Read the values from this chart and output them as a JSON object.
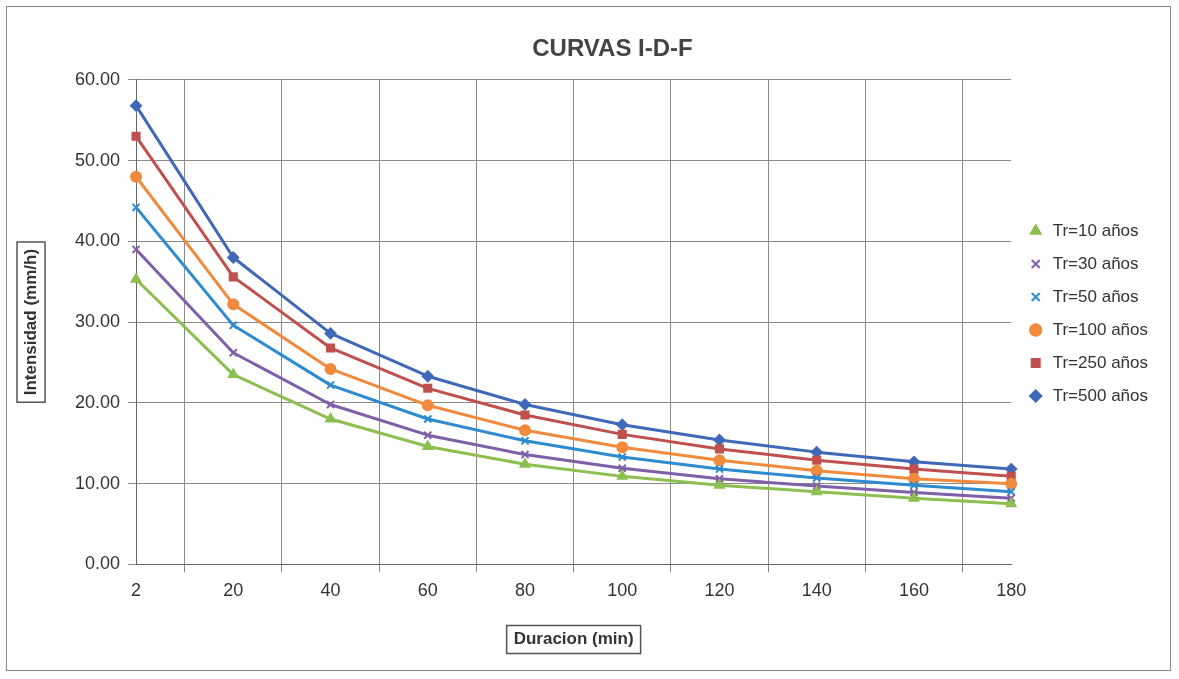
{
  "chart_data": {
    "type": "line",
    "title": "CURVAS I-D-F",
    "xlabel": "Duracion (min)",
    "ylabel": "Intensidad (mm/h)",
    "categories": [
      "2",
      "20",
      "40",
      "60",
      "80",
      "100",
      "120",
      "140",
      "160",
      "180"
    ],
    "ylim": [
      0,
      60
    ],
    "yticks": [
      {
        "value": 0,
        "label": "0.00"
      },
      {
        "value": 10,
        "label": "10.00"
      },
      {
        "value": 20,
        "label": "20.00"
      },
      {
        "value": 30,
        "label": "30.00"
      },
      {
        "value": 40,
        "label": "40.00"
      },
      {
        "value": 50,
        "label": "50.00"
      },
      {
        "value": 60,
        "label": "60.00"
      }
    ],
    "grid": true,
    "legend": "right",
    "line_style": "solid",
    "series": [
      {
        "name": "Tr=10 años",
        "color": "#8cbf4f",
        "marker": "triangle",
        "values": [
          35.3,
          23.5,
          18.0,
          14.6,
          12.4,
          10.9,
          9.8,
          9.0,
          8.2,
          7.5
        ]
      },
      {
        "name": "Tr=30 años",
        "color": "#7f5fa8",
        "marker": "cross",
        "values": [
          39.0,
          26.2,
          19.8,
          16.0,
          13.6,
          11.9,
          10.6,
          9.7,
          8.9,
          8.2
        ]
      },
      {
        "name": "Tr=50 años",
        "color": "#2e8bd0",
        "marker": "cross",
        "values": [
          44.2,
          29.6,
          22.2,
          18.0,
          15.3,
          13.3,
          11.8,
          10.7,
          9.8,
          9.0
        ]
      },
      {
        "name": "Tr=100 años",
        "color": "#f08a3c",
        "marker": "circle",
        "values": [
          48.0,
          32.2,
          24.2,
          19.7,
          16.6,
          14.5,
          12.9,
          11.6,
          10.6,
          10.0
        ]
      },
      {
        "name": "Tr=250 años",
        "color": "#c0504d",
        "marker": "square",
        "values": [
          53.0,
          35.6,
          26.8,
          21.8,
          18.5,
          16.1,
          14.3,
          12.9,
          11.8,
          10.9
        ]
      },
      {
        "name": "Tr=500 años",
        "color": "#3f68b8",
        "marker": "diamond",
        "values": [
          56.8,
          38.0,
          28.6,
          23.3,
          19.8,
          17.3,
          15.4,
          13.9,
          12.7,
          11.8
        ]
      }
    ]
  }
}
